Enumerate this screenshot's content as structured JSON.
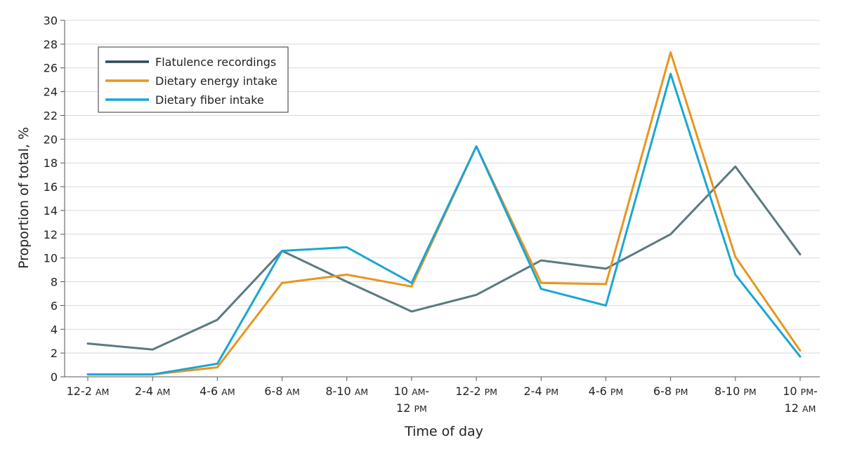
{
  "chart_data": {
    "type": "line",
    "xlabel": "Time of day",
    "ylabel": "Proportion of total, %",
    "ylim": [
      0,
      30
    ],
    "ytick_step": 2,
    "grid": true,
    "legend_placement": "top-left",
    "categories": [
      {
        "line1": "12-2 ",
        "line1_suffix": "AM",
        "line2": "",
        "line2_suffix": ""
      },
      {
        "line1": "2-4 ",
        "line1_suffix": "AM",
        "line2": "",
        "line2_suffix": ""
      },
      {
        "line1": "4-6 ",
        "line1_suffix": "AM",
        "line2": "",
        "line2_suffix": ""
      },
      {
        "line1": "6-8 ",
        "line1_suffix": "AM",
        "line2": "",
        "line2_suffix": ""
      },
      {
        "line1": "8-10 ",
        "line1_suffix": "AM",
        "line2": "",
        "line2_suffix": ""
      },
      {
        "line1": "10 ",
        "line1_suffix": "AM",
        "line1_after": "-",
        "line2": "12 ",
        "line2_suffix": "PM"
      },
      {
        "line1": "12-2 ",
        "line1_suffix": "PM",
        "line2": "",
        "line2_suffix": ""
      },
      {
        "line1": "2-4 ",
        "line1_suffix": "PM",
        "line2": "",
        "line2_suffix": ""
      },
      {
        "line1": "4-6 ",
        "line1_suffix": "PM",
        "line2": "",
        "line2_suffix": ""
      },
      {
        "line1": "6-8 ",
        "line1_suffix": "PM",
        "line2": "",
        "line2_suffix": ""
      },
      {
        "line1": "8-10 ",
        "line1_suffix": "PM",
        "line2": "",
        "line2_suffix": ""
      },
      {
        "line1": "10 ",
        "line1_suffix": "PM",
        "line1_after": "-",
        "line2": "12 ",
        "line2_suffix": "AM"
      }
    ],
    "series": [
      {
        "name": "Flatulence recordings",
        "color": "#5a7a80",
        "values": [
          2.8,
          2.3,
          4.8,
          10.6,
          8.0,
          5.5,
          6.9,
          9.8,
          9.1,
          12.0,
          17.7,
          10.3
        ]
      },
      {
        "name": "Dietary energy intake",
        "color": "#e8951f",
        "values": [
          0.2,
          0.2,
          0.8,
          7.9,
          8.6,
          7.6,
          19.4,
          7.9,
          7.8,
          27.3,
          10.1,
          2.2
        ]
      },
      {
        "name": "Dietary fiber intake",
        "color": "#1aa6d4",
        "values": [
          0.2,
          0.2,
          1.1,
          10.6,
          10.9,
          7.9,
          19.4,
          7.4,
          6.0,
          25.5,
          8.6,
          1.7
        ]
      }
    ],
    "legend_colors": [
      "#2c4a55",
      "#e8951f",
      "#1aa6d4"
    ],
    "grid_color": "#d9d9d9",
    "axis_color": "#555555"
  }
}
